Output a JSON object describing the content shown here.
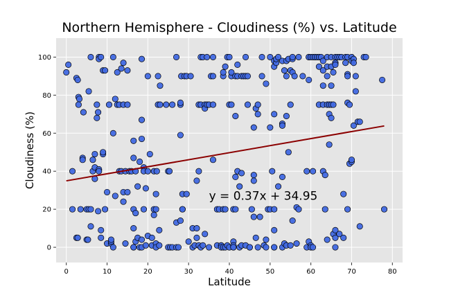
{
  "chart_data": {
    "type": "scatter",
    "title": "Northern Hemisphere - Cloudiness (%) vs. Latitude",
    "xlabel": "Latitude",
    "ylabel": "Cloudiness (%)",
    "xlim": [
      -2.5,
      82.5
    ],
    "ylim": [
      -8,
      110
    ],
    "xticks": [
      0,
      10,
      20,
      30,
      40,
      50,
      60,
      70,
      80
    ],
    "yticks": [
      0,
      20,
      40,
      60,
      80,
      100
    ],
    "grid": true,
    "colors": {
      "background": "#e5e5e5",
      "grid": "#ffffff",
      "marker_fill": "#4169e1",
      "marker_edge": "#000000",
      "regression": "#8b0000"
    },
    "regression": {
      "slope": 0.37,
      "intercept": 34.95,
      "x_range": [
        0,
        78
      ],
      "equation": "y = 0.37x + 34.95",
      "annotation_at": [
        35,
        25
      ]
    },
    "points": [
      [
        0,
        92
      ],
      [
        0.5,
        96
      ],
      [
        1.5,
        40
      ],
      [
        1.5,
        20
      ],
      [
        2.5,
        5
      ],
      [
        2.8,
        5
      ],
      [
        2.5,
        89
      ],
      [
        2.8,
        88
      ],
      [
        3,
        79
      ],
      [
        3.2,
        78
      ],
      [
        3,
        75
      ],
      [
        3.5,
        20
      ],
      [
        4,
        47
      ],
      [
        4,
        46
      ],
      [
        4.2,
        71
      ],
      [
        5,
        4
      ],
      [
        5.3,
        4
      ],
      [
        5,
        20
      ],
      [
        5.5,
        20
      ],
      [
        5.5,
        82
      ],
      [
        6,
        20
      ],
      [
        6,
        11
      ],
      [
        6,
        100
      ],
      [
        6.5,
        46
      ],
      [
        6.5,
        40
      ],
      [
        7,
        42
      ],
      [
        7,
        36
      ],
      [
        7,
        49
      ],
      [
        7.5,
        68
      ],
      [
        7.5,
        75
      ],
      [
        7.8,
        71
      ],
      [
        7.8,
        19
      ],
      [
        8,
        100
      ],
      [
        8,
        99
      ],
      [
        8.5,
        100
      ],
      [
        8,
        41
      ],
      [
        8,
        40
      ],
      [
        8.5,
        9
      ],
      [
        8.5,
        5
      ],
      [
        9,
        49
      ],
      [
        9,
        50
      ],
      [
        9,
        93
      ],
      [
        9.5,
        93
      ],
      [
        9.5,
        20
      ],
      [
        10,
        29
      ],
      [
        10,
        2
      ],
      [
        10.5,
        75
      ],
      [
        11,
        2
      ],
      [
        11,
        3
      ],
      [
        11,
        4
      ],
      [
        11.5,
        0
      ],
      [
        11.5,
        60
      ],
      [
        11.5,
        100
      ],
      [
        12,
        27
      ],
      [
        12,
        78
      ],
      [
        12.5,
        75
      ],
      [
        12.5,
        92
      ],
      [
        13,
        75
      ],
      [
        13,
        40
      ],
      [
        13.5,
        40
      ],
      [
        13.5,
        94
      ],
      [
        14,
        75
      ],
      [
        14,
        97
      ],
      [
        14,
        29
      ],
      [
        14,
        24
      ],
      [
        14.5,
        2
      ],
      [
        14.5,
        40
      ],
      [
        15,
        93
      ],
      [
        15,
        75
      ],
      [
        15,
        29
      ],
      [
        15.5,
        40
      ],
      [
        16,
        40
      ],
      [
        16.5,
        10
      ],
      [
        16.5,
        0
      ],
      [
        16.5,
        0
      ],
      [
        16.5,
        20
      ],
      [
        16.5,
        47
      ],
      [
        16.5,
        56
      ],
      [
        17,
        40
      ],
      [
        17,
        18
      ],
      [
        17,
        3
      ],
      [
        17.5,
        5
      ],
      [
        17.5,
        32
      ],
      [
        18,
        45
      ],
      [
        18,
        0
      ],
      [
        18.5,
        67
      ],
      [
        18.5,
        57
      ],
      [
        18.5,
        4
      ],
      [
        18.5,
        0
      ],
      [
        18.5,
        99
      ],
      [
        19,
        20
      ],
      [
        19,
        42
      ],
      [
        19,
        40
      ],
      [
        19.5,
        1
      ],
      [
        19.5,
        31
      ],
      [
        20,
        90
      ],
      [
        20,
        6
      ],
      [
        20,
        40
      ],
      [
        20.5,
        49
      ],
      [
        21,
        5
      ],
      [
        21,
        1
      ],
      [
        21.5,
        40
      ],
      [
        21.5,
        17
      ],
      [
        21.5,
        20
      ],
      [
        22,
        2
      ],
      [
        22,
        0
      ],
      [
        22,
        20
      ],
      [
        22,
        28
      ],
      [
        22.2,
        40
      ],
      [
        22.5,
        75
      ],
      [
        22.5,
        90
      ],
      [
        22.8,
        1
      ],
      [
        22.8,
        9
      ],
      [
        23,
        75
      ],
      [
        23,
        85
      ],
      [
        24.5,
        75
      ],
      [
        25,
        40
      ],
      [
        25,
        0
      ],
      [
        25.3,
        40
      ],
      [
        25.5,
        0
      ],
      [
        26,
        75
      ],
      [
        26,
        0
      ],
      [
        27,
        0
      ],
      [
        27,
        100
      ],
      [
        27,
        13
      ],
      [
        27.5,
        0
      ],
      [
        28,
        75
      ],
      [
        28,
        76
      ],
      [
        28,
        14
      ],
      [
        28,
        59
      ],
      [
        28.2,
        90
      ],
      [
        28.5,
        28
      ],
      [
        28.5,
        20
      ],
      [
        28.5,
        20
      ],
      [
        29,
        90
      ],
      [
        29.5,
        90
      ],
      [
        29.5,
        28
      ],
      [
        30,
        3
      ],
      [
        30.5,
        90
      ],
      [
        31,
        10
      ],
      [
        31,
        0
      ],
      [
        31.5,
        1
      ],
      [
        32,
        5
      ],
      [
        32,
        10
      ],
      [
        32,
        35
      ],
      [
        32.5,
        1
      ],
      [
        32.5,
        75
      ],
      [
        32.5,
        40
      ],
      [
        33,
        75
      ],
      [
        33,
        100
      ],
      [
        33,
        0
      ],
      [
        33.5,
        100
      ],
      [
        33.5,
        1
      ],
      [
        34,
        75
      ],
      [
        34,
        7
      ],
      [
        34,
        73
      ],
      [
        34.5,
        75
      ],
      [
        34.5,
        100
      ],
      [
        35,
        0
      ],
      [
        35,
        75
      ],
      [
        35.5,
        90
      ],
      [
        36,
        46
      ],
      [
        36,
        90
      ],
      [
        36,
        100
      ],
      [
        36,
        75
      ],
      [
        37,
        1
      ],
      [
        37,
        20
      ],
      [
        37.5,
        20
      ],
      [
        38,
        1
      ],
      [
        38,
        1
      ],
      [
        38,
        0
      ],
      [
        38.5,
        20
      ],
      [
        38.5,
        0
      ],
      [
        38.5,
        90
      ],
      [
        38.5,
        92
      ],
      [
        39,
        0
      ],
      [
        39,
        20
      ],
      [
        39,
        95
      ],
      [
        39.5,
        1
      ],
      [
        39.5,
        100
      ],
      [
        40,
        100
      ],
      [
        40,
        0
      ],
      [
        40,
        75
      ],
      [
        40.5,
        75
      ],
      [
        40.5,
        90
      ],
      [
        40.5,
        92
      ],
      [
        41,
        3
      ],
      [
        41,
        1
      ],
      [
        41,
        0
      ],
      [
        41,
        0
      ],
      [
        41,
        20
      ],
      [
        41.5,
        20
      ],
      [
        41.5,
        69
      ],
      [
        41.5,
        90
      ],
      [
        41.5,
        37
      ],
      [
        42,
        96
      ],
      [
        42,
        40
      ],
      [
        42,
        90
      ],
      [
        42.5,
        32
      ],
      [
        42.5,
        0
      ],
      [
        43,
        1
      ],
      [
        43,
        39
      ],
      [
        43,
        90
      ],
      [
        43.5,
        90
      ],
      [
        44,
        1
      ],
      [
        44,
        90
      ],
      [
        44,
        100
      ],
      [
        44.5,
        75
      ],
      [
        44.5,
        90
      ],
      [
        45,
        0
      ],
      [
        45,
        0
      ],
      [
        45.5,
        20
      ],
      [
        46,
        38
      ],
      [
        46,
        35
      ],
      [
        46,
        63
      ],
      [
        46,
        16
      ],
      [
        46.5,
        73
      ],
      [
        46.5,
        5
      ],
      [
        47,
        0
      ],
      [
        47,
        70
      ],
      [
        47,
        75
      ],
      [
        47.5,
        16
      ],
      [
        48,
        100
      ],
      [
        48,
        90
      ],
      [
        48.5,
        1
      ],
      [
        49,
        86
      ],
      [
        49,
        0
      ],
      [
        49,
        4
      ],
      [
        49.5,
        20
      ],
      [
        50,
        100
      ],
      [
        50,
        63
      ],
      [
        50,
        20
      ],
      [
        50.5,
        40
      ],
      [
        51,
        9
      ],
      [
        51,
        0
      ],
      [
        51,
        0
      ],
      [
        51,
        95
      ],
      [
        51,
        98
      ],
      [
        51,
        70
      ],
      [
        51,
        20
      ],
      [
        51.5,
        97
      ],
      [
        51.5,
        99
      ],
      [
        52,
        32
      ],
      [
        52,
        100
      ],
      [
        53,
        98
      ],
      [
        53,
        65
      ],
      [
        53,
        64
      ],
      [
        53,
        37
      ],
      [
        53,
        0
      ],
      [
        53.5,
        2
      ],
      [
        53.5,
        93
      ],
      [
        54,
        98
      ],
      [
        54,
        69
      ],
      [
        54,
        1
      ],
      [
        54,
        90
      ],
      [
        54.5,
        99
      ],
      [
        54.5,
        50
      ],
      [
        55,
        1
      ],
      [
        55,
        93
      ],
      [
        55,
        75
      ],
      [
        55.5,
        99
      ],
      [
        55.5,
        14
      ],
      [
        55.5,
        92
      ],
      [
        55.5,
        100
      ],
      [
        56,
        90
      ],
      [
        56.5,
        2
      ],
      [
        56.5,
        21
      ],
      [
        57,
        100
      ],
      [
        57,
        20
      ],
      [
        58,
        90
      ],
      [
        59,
        40
      ],
      [
        59,
        0
      ],
      [
        59.5,
        100
      ],
      [
        59.5,
        100
      ],
      [
        59.5,
        88
      ],
      [
        59.5,
        3
      ],
      [
        60,
        100
      ],
      [
        60,
        1
      ],
      [
        60,
        0
      ],
      [
        60.5,
        100
      ],
      [
        60.5,
        40
      ],
      [
        60.5,
        0
      ],
      [
        61,
        100
      ],
      [
        61,
        100
      ],
      [
        61.5,
        100
      ],
      [
        62,
        100
      ],
      [
        62,
        75
      ],
      [
        62,
        95
      ],
      [
        62,
        100
      ],
      [
        62.5,
        100
      ],
      [
        63,
        40
      ],
      [
        63,
        98
      ],
      [
        63,
        93
      ],
      [
        63,
        85
      ],
      [
        63,
        75
      ],
      [
        63.5,
        38
      ],
      [
        63.5,
        20
      ],
      [
        64,
        95
      ],
      [
        64,
        100
      ],
      [
        64,
        90
      ],
      [
        64,
        75
      ],
      [
        64,
        4
      ],
      [
        64.5,
        70
      ],
      [
        64.5,
        75
      ],
      [
        64.5,
        54
      ],
      [
        65,
        68
      ],
      [
        65,
        85
      ],
      [
        65,
        95
      ],
      [
        65,
        75
      ],
      [
        65,
        100
      ],
      [
        65.5,
        75
      ],
      [
        65.5,
        7
      ],
      [
        65.5,
        92
      ],
      [
        66,
        100
      ],
      [
        66,
        97
      ],
      [
        66,
        97
      ],
      [
        66,
        96
      ],
      [
        66,
        5
      ],
      [
        66,
        0
      ],
      [
        66,
        9
      ],
      [
        66.5,
        100
      ],
      [
        67,
        100
      ],
      [
        67,
        7
      ],
      [
        67.5,
        100
      ],
      [
        68,
        28
      ],
      [
        68,
        5
      ],
      [
        68.5,
        97
      ],
      [
        68.5,
        100
      ],
      [
        69,
        100
      ],
      [
        69,
        91
      ],
      [
        69,
        90
      ],
      [
        69,
        20
      ],
      [
        69,
        76
      ],
      [
        69.5,
        75
      ],
      [
        69.5,
        44
      ],
      [
        70,
        100
      ],
      [
        70,
        98
      ],
      [
        70,
        45
      ],
      [
        70,
        46
      ],
      [
        70.5,
        99
      ],
      [
        70.5,
        64
      ],
      [
        70.5,
        97
      ],
      [
        71,
        82
      ],
      [
        71,
        90
      ],
      [
        71.5,
        66
      ],
      [
        72,
        11
      ],
      [
        72,
        66
      ],
      [
        73,
        100
      ],
      [
        73.5,
        100
      ],
      [
        77.5,
        88
      ],
      [
        78,
        20
      ]
    ]
  }
}
